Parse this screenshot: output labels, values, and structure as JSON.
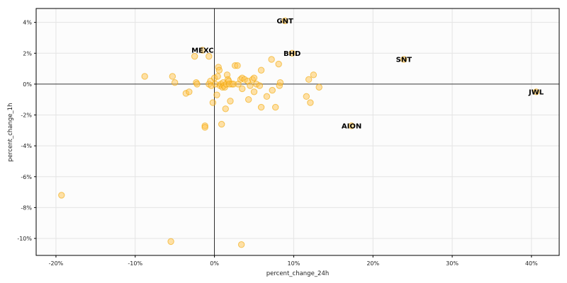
{
  "chart_data": {
    "type": "scatter",
    "title": "",
    "xlabel": "percent_change_24h",
    "ylabel": "percent_change_1h",
    "xlim": [
      -22.5,
      43.5
    ],
    "ylim": [
      -11.1,
      4.9
    ],
    "xticks": [
      -20,
      -10,
      0,
      10,
      20,
      30,
      40
    ],
    "xtick_labels": [
      "-20%",
      "-10%",
      "0%",
      "10%",
      "20%",
      "30%",
      "40%"
    ],
    "yticks": [
      -10,
      -8,
      -6,
      -4,
      -2,
      0,
      2,
      4
    ],
    "ytick_labels": [
      "-10%",
      "-8%",
      "-6%",
      "-4%",
      "-2%",
      "0%",
      "2%",
      "4%"
    ],
    "grid": true,
    "reference_lines": {
      "x": 0,
      "y": 0
    },
    "colors": {
      "point_fill": "#ffc34d",
      "point_stroke": "#f0a500",
      "background": "#fcfcfc"
    },
    "points": [
      {
        "x": -19.3,
        "y": -7.2
      },
      {
        "x": -8.8,
        "y": 0.5
      },
      {
        "x": -5.3,
        "y": 0.5
      },
      {
        "x": -5.0,
        "y": 0.1
      },
      {
        "x": -5.5,
        "y": -10.2
      },
      {
        "x": -3.6,
        "y": -0.6
      },
      {
        "x": -3.2,
        "y": -0.5
      },
      {
        "x": -2.5,
        "y": 1.8
      },
      {
        "x": -2.3,
        "y": 0.1
      },
      {
        "x": -2.2,
        "y": 0.0
      },
      {
        "x": -1.2,
        "y": -2.7
      },
      {
        "x": -1.2,
        "y": -2.8
      },
      {
        "x": -0.7,
        "y": 1.8
      },
      {
        "x": -0.7,
        "y": 0.0
      },
      {
        "x": -0.5,
        "y": 0.2
      },
      {
        "x": -0.4,
        "y": -0.1
      },
      {
        "x": -0.2,
        "y": -1.2
      },
      {
        "x": 0.0,
        "y": 0.4
      },
      {
        "x": 0.1,
        "y": 0.0
      },
      {
        "x": 0.3,
        "y": -0.7
      },
      {
        "x": 0.4,
        "y": 0.5
      },
      {
        "x": 0.5,
        "y": 1.1
      },
      {
        "x": 0.6,
        "y": 0.9
      },
      {
        "x": 0.7,
        "y": -0.1
      },
      {
        "x": 0.8,
        "y": 0.0
      },
      {
        "x": 0.9,
        "y": -2.6
      },
      {
        "x": 1.0,
        "y": -0.2
      },
      {
        "x": 1.1,
        "y": 0.1
      },
      {
        "x": 1.2,
        "y": -0.1
      },
      {
        "x": 1.3,
        "y": -0.2
      },
      {
        "x": 1.4,
        "y": -1.6
      },
      {
        "x": 1.5,
        "y": 0.0
      },
      {
        "x": 1.6,
        "y": 0.6
      },
      {
        "x": 1.7,
        "y": 0.3
      },
      {
        "x": 1.8,
        "y": 0.2
      },
      {
        "x": 1.9,
        "y": 0.0
      },
      {
        "x": 2.0,
        "y": -1.1
      },
      {
        "x": 2.2,
        "y": 0.0
      },
      {
        "x": 2.4,
        "y": 0.0
      },
      {
        "x": 2.6,
        "y": 1.2
      },
      {
        "x": 2.9,
        "y": 1.2
      },
      {
        "x": 3.0,
        "y": 0.0
      },
      {
        "x": 3.3,
        "y": 0.3
      },
      {
        "x": 3.5,
        "y": 0.4
      },
      {
        "x": 3.5,
        "y": -0.3
      },
      {
        "x": 3.4,
        "y": -10.4
      },
      {
        "x": 3.8,
        "y": 0.3
      },
      {
        "x": 4.2,
        "y": 0.2
      },
      {
        "x": 4.3,
        "y": -1.0
      },
      {
        "x": 4.5,
        "y": -0.1
      },
      {
        "x": 4.8,
        "y": 0.3
      },
      {
        "x": 5.0,
        "y": 0.4
      },
      {
        "x": 5.0,
        "y": -0.5
      },
      {
        "x": 5.3,
        "y": 0.0
      },
      {
        "x": 5.7,
        "y": -0.1
      },
      {
        "x": 5.9,
        "y": 0.9
      },
      {
        "x": 5.9,
        "y": -1.5
      },
      {
        "x": 6.6,
        "y": -0.8
      },
      {
        "x": 7.2,
        "y": 1.6
      },
      {
        "x": 7.3,
        "y": -0.4
      },
      {
        "x": 7.7,
        "y": -1.5
      },
      {
        "x": 8.1,
        "y": 1.3
      },
      {
        "x": 8.2,
        "y": -0.1
      },
      {
        "x": 8.3,
        "y": 0.1
      },
      {
        "x": 11.6,
        "y": -0.8
      },
      {
        "x": 11.9,
        "y": 0.3
      },
      {
        "x": 12.1,
        "y": -1.2
      },
      {
        "x": 12.5,
        "y": 0.6
      },
      {
        "x": 13.2,
        "y": -0.2
      }
    ],
    "annotations": [
      {
        "label": "GNT",
        "x": 8.9,
        "y": 4.1
      },
      {
        "label": "MEXC",
        "x": -1.5,
        "y": 2.2
      },
      {
        "label": "BHD",
        "x": 9.8,
        "y": 2.0
      },
      {
        "label": "SNT",
        "x": 23.9,
        "y": 1.6
      },
      {
        "label": "JWL",
        "x": 40.6,
        "y": -0.5
      },
      {
        "label": "AION",
        "x": 17.3,
        "y": -2.7
      }
    ]
  }
}
